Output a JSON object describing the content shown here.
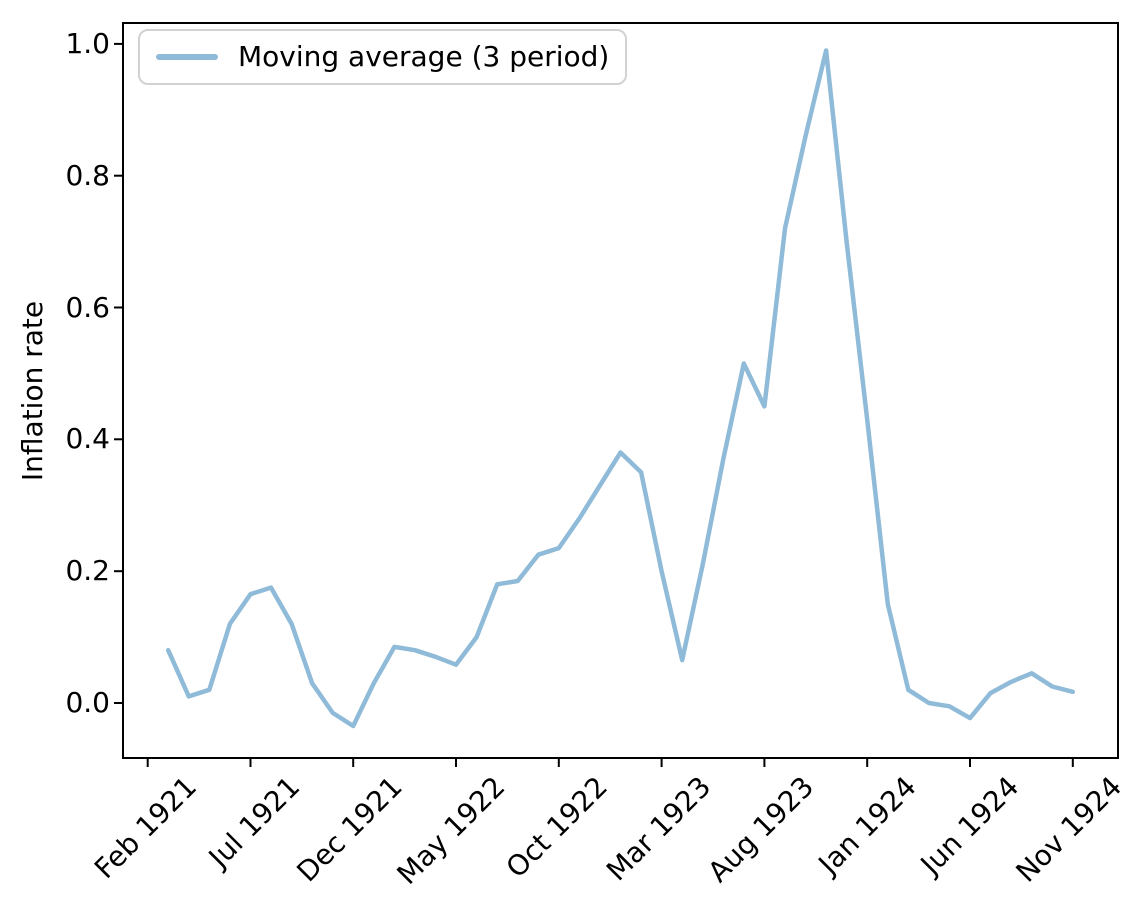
{
  "figure": {
    "background": "#ffffff",
    "axis_color": "#000000"
  },
  "chart_data": {
    "type": "line",
    "title": "",
    "xlabel": "",
    "ylabel": "Inflation rate",
    "grid": false,
    "legend_position": "upper left",
    "legend_label": "Moving average (3 period)",
    "y_ticks": [
      {
        "label": "0.0",
        "value": 0.0
      },
      {
        "label": "0.2",
        "value": 0.2
      },
      {
        "label": "0.4",
        "value": 0.4
      },
      {
        "label": "0.6",
        "value": 0.6
      },
      {
        "label": "0.8",
        "value": 0.8
      },
      {
        "label": "1.0",
        "value": 1.0
      }
    ],
    "x_ticks": [
      {
        "label": "Feb 1921",
        "month_index": 1
      },
      {
        "label": "Jul 1921",
        "month_index": 6
      },
      {
        "label": "Dec 1921",
        "month_index": 11
      },
      {
        "label": "May 1922",
        "month_index": 16
      },
      {
        "label": "Oct 1922",
        "month_index": 21
      },
      {
        "label": "Mar 1923",
        "month_index": 26
      },
      {
        "label": "Aug 1923",
        "month_index": 31
      },
      {
        "label": "Jan 1924",
        "month_index": 36
      },
      {
        "label": "Jun 1924",
        "month_index": 41
      },
      {
        "label": "Nov 1924",
        "month_index": 46
      }
    ],
    "x_range_months": [
      -0.2,
      48.2
    ],
    "y_range": [
      -0.0835,
      1.0317
    ],
    "x_start_month_index": 2,
    "series": [
      {
        "name": "Moving average (3 period)",
        "color": "#8fbbd9",
        "x": [
          "Mar 1921",
          "Apr 1921",
          "May 1921",
          "Jun 1921",
          "Jul 1921",
          "Aug 1921",
          "Sep 1921",
          "Oct 1921",
          "Nov 1921",
          "Dec 1921",
          "Jan 1922",
          "Feb 1922",
          "Mar 1922",
          "Apr 1922",
          "May 1922",
          "Jun 1922",
          "Jul 1922",
          "Aug 1922",
          "Sep 1922",
          "Oct 1922",
          "Nov 1922",
          "Dec 1922",
          "Jan 1923",
          "Feb 1923",
          "Mar 1923",
          "Apr 1923",
          "May 1923",
          "Jun 1923",
          "Jul 1923",
          "Aug 1923",
          "Sep 1923",
          "Oct 1923",
          "Nov 1923",
          "Dec 1923",
          "Jan 1924",
          "Feb 1924",
          "Mar 1924",
          "Apr 1924",
          "May 1924",
          "Jun 1924",
          "Jul 1924",
          "Aug 1924",
          "Sep 1924",
          "Oct 1924",
          "Nov 1924"
        ],
        "values": [
          0.08,
          0.01,
          0.02,
          0.12,
          0.165,
          0.175,
          0.12,
          0.03,
          -0.015,
          -0.035,
          0.03,
          0.085,
          0.08,
          0.07,
          0.058,
          0.1,
          0.18,
          0.185,
          0.225,
          0.235,
          0.28,
          0.33,
          0.38,
          0.35,
          0.2,
          0.065,
          0.21,
          0.37,
          0.515,
          0.45,
          0.72,
          0.86,
          0.99,
          0.7,
          0.43,
          0.15,
          0.02,
          0.0,
          -0.005,
          -0.023,
          0.015,
          0.032,
          0.045,
          0.025,
          0.017
        ]
      }
    ]
  }
}
